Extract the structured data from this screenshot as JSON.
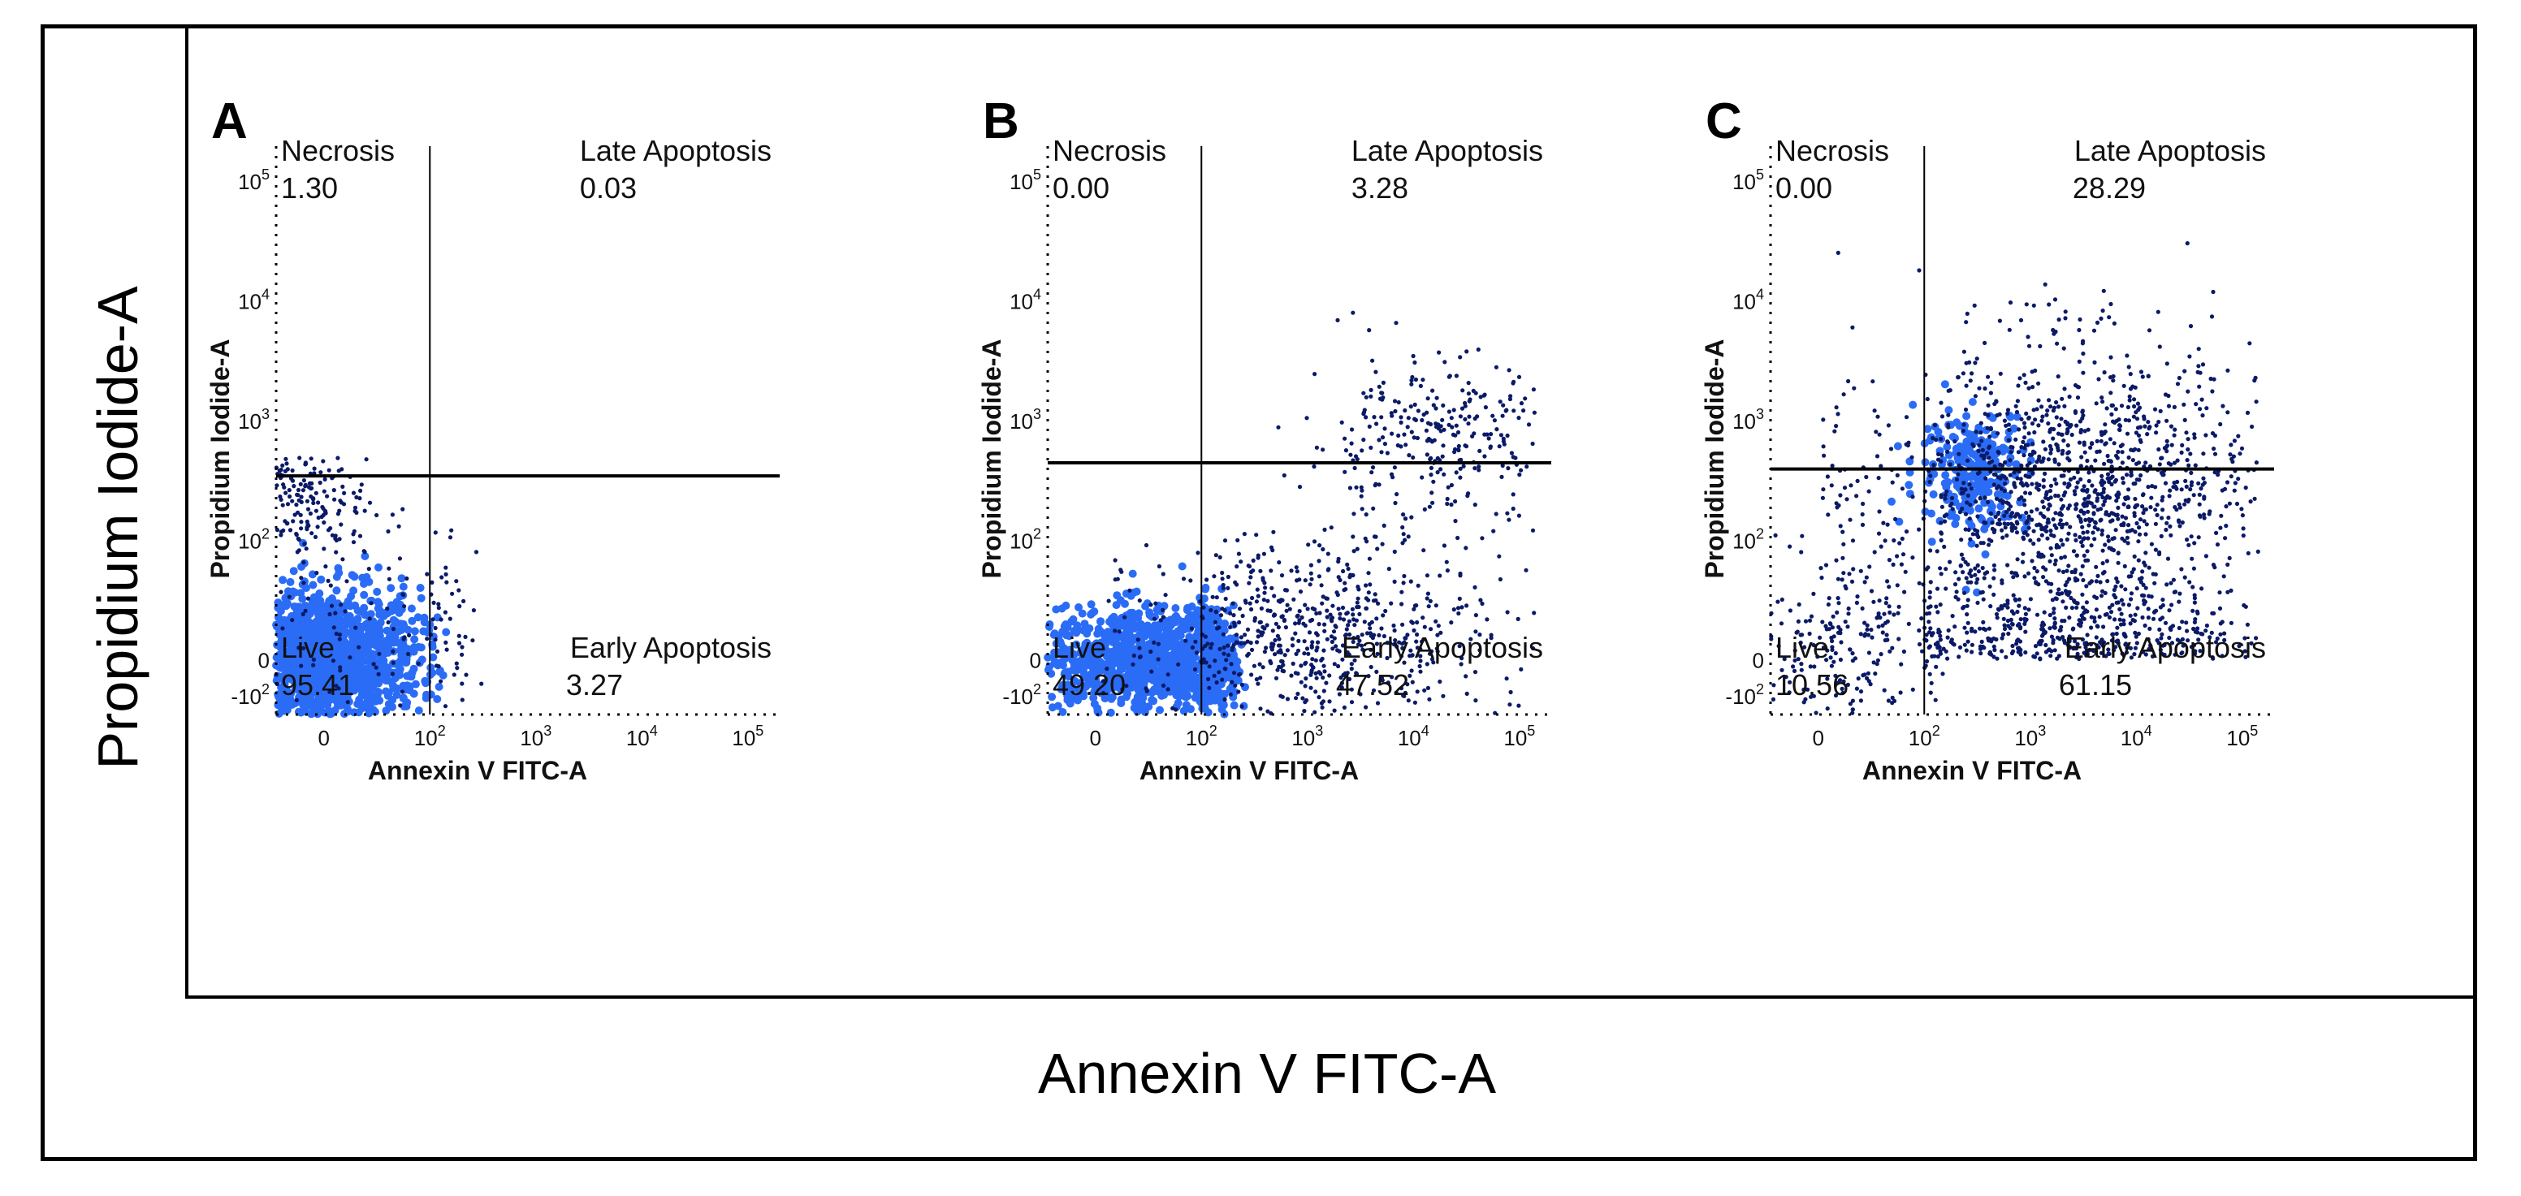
{
  "figure": {
    "ylabel": "Propidium Iodide-A",
    "xlabel": "Annexin V FITC-A"
  },
  "colors": {
    "dots": "#0b1a66",
    "dense": "#2b6cf6",
    "lines": "#000000"
  },
  "chart_data": [
    {
      "type": "scatter",
      "panel": "A",
      "xlabel": "Annexin V FITC-A",
      "ylabel": "Propidium Iodide-A",
      "x_ticks": [
        "0",
        "10^2",
        "10^3",
        "10^4",
        "10^5"
      ],
      "y_ticks": [
        "-10^2",
        "0",
        "10^2",
        "10^3",
        "10^4",
        "10^5"
      ],
      "quadrants": {
        "necrosis": {
          "label": "Necrosis",
          "value": "1.30"
        },
        "late_apoptosis": {
          "label": "Late Apoptosis",
          "value": "0.03"
        },
        "live": {
          "label": "Live",
          "value": "95.41"
        },
        "early_apoptosis": {
          "label": "Early Apoptosis",
          "value": "3.27"
        }
      },
      "populations": [
        {
          "x": 0,
          "y": 0,
          "sx": 45,
          "sy": 30,
          "n": 1500,
          "dense": true
        },
        {
          "x": -40,
          "y": 220,
          "sx": 40,
          "sy": 130,
          "n": 260,
          "dense": false
        },
        {
          "x": 60,
          "y": 30,
          "sx": 90,
          "sy": 60,
          "n": 160,
          "dense": false
        }
      ]
    },
    {
      "type": "scatter",
      "panel": "B",
      "xlabel": "Annexin V FITC-A",
      "ylabel": "Propidium Iodide-A",
      "x_ticks": [
        "0",
        "10^2",
        "10^3",
        "10^4",
        "10^5"
      ],
      "y_ticks": [
        "-10^2",
        "0",
        "10^2",
        "10^3",
        "10^4",
        "10^5"
      ],
      "quadrants": {
        "necrosis": {
          "label": "Necrosis",
          "value": "0.00"
        },
        "late_apoptosis": {
          "label": "Late Apoptosis",
          "value": "3.28"
        },
        "live": {
          "label": "Live",
          "value": "49.20"
        },
        "early_apoptosis": {
          "label": "Early Apoptosis",
          "value": "47.52"
        }
      },
      "populations": [
        {
          "x": 60,
          "y": 0,
          "sx": 60,
          "sy": 22,
          "n": 1300,
          "dense": true
        },
        {
          "x": 1200,
          "y": 20,
          "sx": 0.8,
          "sy": 40,
          "n": 700,
          "dense": false,
          "logx": true
        },
        {
          "x": 15000,
          "y": 700,
          "sx": 0.6,
          "sy": 0.35,
          "n": 300,
          "dense": false,
          "logx": true,
          "logy": true
        }
      ]
    },
    {
      "type": "scatter",
      "panel": "C",
      "xlabel": "Annexin V FITC-A",
      "ylabel": "Propidium Iodide-A",
      "x_ticks": [
        "0",
        "10^2",
        "10^3",
        "10^4",
        "10^5"
      ],
      "y_ticks": [
        "-10^2",
        "0",
        "10^2",
        "10^3",
        "10^4",
        "10^5"
      ],
      "quadrants": {
        "necrosis": {
          "label": "Necrosis",
          "value": "0.00"
        },
        "late_apoptosis": {
          "label": "Late Apoptosis",
          "value": "28.29"
        },
        "live": {
          "label": "Live",
          "value": "10.56"
        },
        "early_apoptosis": {
          "label": "Early Apoptosis",
          "value": "61.15"
        }
      },
      "populations": [
        {
          "x": 300,
          "y": 400,
          "sx": 0.25,
          "sy": 0.25,
          "n": 250,
          "dense": true,
          "logx": true,
          "logy": true
        },
        {
          "x": 2500,
          "y": 150,
          "sx": 0.9,
          "sy": 0.7,
          "n": 1800,
          "dense": false,
          "logx": true,
          "logy": true
        },
        {
          "x": 30,
          "y": 20,
          "sx": 60,
          "sy": 40,
          "n": 250,
          "dense": false
        }
      ]
    }
  ]
}
